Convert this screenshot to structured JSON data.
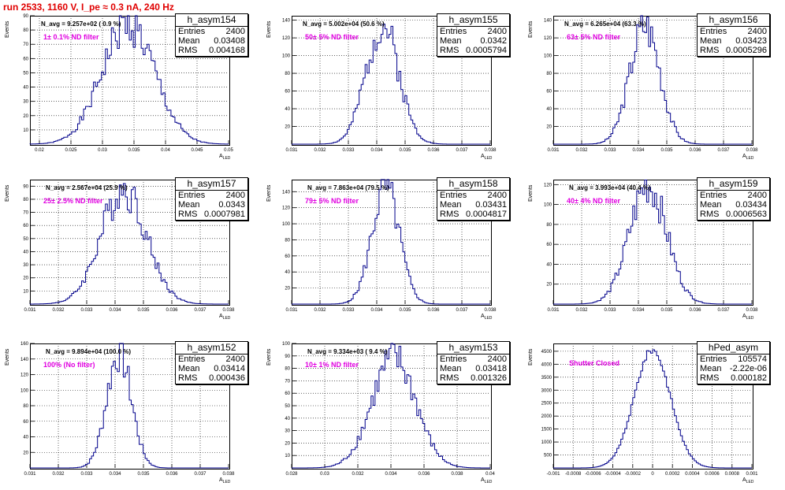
{
  "title": "run 2533,  1160 V, I_pe ≈ 0.3 nA, 240 Hz",
  "y_axis_title": "Events",
  "x_axis_title": "A",
  "x_axis_subscript": "LED",
  "stats_labels": {
    "entries": "Entries",
    "mean": "Mean",
    "rms": "RMS"
  },
  "colors": {
    "title": "#e00000",
    "label": "#e000e0",
    "histogram": "#00008b"
  },
  "chart_data": [
    {
      "type": "histogram",
      "name": "h_asym154",
      "n_avg_text": "N_avg = 9.257e+02 ( 0.9 %)",
      "filter_label": "1± 0.1% ND filter",
      "entries": "2400",
      "mean": "0.03408",
      "rms": "0.004168",
      "mean_value": 0.03408,
      "rms_value": 0.004168,
      "peak": 84,
      "xlim": [
        0.0185,
        0.05
      ],
      "xticks": [
        "0.02",
        "0.025",
        "0.03",
        "0.035",
        "0.04",
        "0.045",
        "0.05"
      ],
      "xtick_values": [
        0.02,
        0.025,
        0.03,
        0.035,
        0.04,
        0.045,
        0.05
      ],
      "ylim": [
        0,
        90
      ],
      "yticks": [
        "10",
        "20",
        "30",
        "40",
        "50",
        "60",
        "70",
        "80",
        "90"
      ],
      "ytick_values": [
        10,
        20,
        30,
        40,
        50,
        60,
        70,
        80,
        90
      ]
    },
    {
      "type": "histogram",
      "name": "h_asym155",
      "n_avg_text": "N_avg = 5.002e+04 (50.6 %)",
      "filter_label": "50± 5% ND filter",
      "entries": "2400",
      "mean": "0.0342",
      "rms": "0.0005794",
      "mean_value": 0.0342,
      "rms_value": 0.0005794,
      "peak": 135,
      "xlim": [
        0.031,
        0.038
      ],
      "xticks": [
        "0.031",
        "0.032",
        "0.033",
        "0.034",
        "0.035",
        "0.036",
        "0.037",
        "0.038"
      ],
      "xtick_values": [
        0.031,
        0.032,
        0.033,
        0.034,
        0.035,
        0.036,
        0.037,
        0.038
      ],
      "ylim": [
        0,
        145
      ],
      "yticks": [
        "20",
        "40",
        "60",
        "80",
        "100",
        "120",
        "140"
      ],
      "ytick_values": [
        20,
        40,
        60,
        80,
        100,
        120,
        140
      ]
    },
    {
      "type": "histogram",
      "name": "h_asym156",
      "n_avg_text": "N_avg = 6.265e+04 (63.3 %)",
      "filter_label": "63± 5% ND filter",
      "entries": "2400",
      "mean": "0.03423",
      "rms": "0.0005296",
      "mean_value": 0.03423,
      "rms_value": 0.0005296,
      "peak": 135,
      "xlim": [
        0.031,
        0.038
      ],
      "xticks": [
        "0.031",
        "0.032",
        "0.033",
        "0.034",
        "0.035",
        "0.036",
        "0.037",
        "0.038"
      ],
      "xtick_values": [
        0.031,
        0.032,
        0.033,
        0.034,
        0.035,
        0.036,
        0.037,
        0.038
      ],
      "ylim": [
        0,
        145
      ],
      "yticks": [
        "20",
        "40",
        "60",
        "80",
        "100",
        "120",
        "140"
      ],
      "ytick_values": [
        20,
        40,
        60,
        80,
        100,
        120,
        140
      ]
    },
    {
      "type": "histogram",
      "name": "h_asym157",
      "n_avg_text": "N_avg = 2.567e+04 (25.9 %)",
      "filter_label": "25± 2.5% ND filter",
      "entries": "2400",
      "mean": "0.0343",
      "rms": "0.0007981",
      "mean_value": 0.0343,
      "rms_value": 0.0007981,
      "peak": 88,
      "xlim": [
        0.031,
        0.038
      ],
      "xticks": [
        "0.031",
        "0.032",
        "0.033",
        "0.034",
        "0.035",
        "0.036",
        "0.037",
        "0.038"
      ],
      "xtick_values": [
        0.031,
        0.032,
        0.033,
        0.034,
        0.035,
        0.036,
        0.037,
        0.038
      ],
      "ylim": [
        0,
        95
      ],
      "yticks": [
        "10",
        "20",
        "30",
        "40",
        "50",
        "60",
        "70",
        "80",
        "90"
      ],
      "ytick_values": [
        10,
        20,
        30,
        40,
        50,
        60,
        70,
        80,
        90
      ]
    },
    {
      "type": "histogram",
      "name": "h_asym158",
      "n_avg_text": "N_avg = 7.863e+04 (79.5 %)",
      "filter_label": "79± 5% ND filter",
      "entries": "2400",
      "mean": "0.03431",
      "rms": "0.0004817",
      "mean_value": 0.03431,
      "rms_value": 0.0004817,
      "peak": 145,
      "xlim": [
        0.031,
        0.038
      ],
      "xticks": [
        "0.031",
        "0.032",
        "0.033",
        "0.034",
        "0.035",
        "0.036",
        "0.037",
        "0.038"
      ],
      "xtick_values": [
        0.031,
        0.032,
        0.033,
        0.034,
        0.035,
        0.036,
        0.037,
        0.038
      ],
      "ylim": [
        0,
        155
      ],
      "yticks": [
        "20",
        "40",
        "60",
        "80",
        "100",
        "120",
        "140"
      ],
      "ytick_values": [
        20,
        40,
        60,
        80,
        100,
        120,
        140
      ]
    },
    {
      "type": "histogram",
      "name": "h_asym159",
      "n_avg_text": "N_avg = 3.993e+04 (40.4 %)",
      "filter_label": "40± 4% ND filter",
      "entries": "2400",
      "mean": "0.03434",
      "rms": "0.0006563",
      "mean_value": 0.03434,
      "rms_value": 0.0006563,
      "peak": 120,
      "xlim": [
        0.031,
        0.038
      ],
      "xticks": [
        "0.031",
        "0.032",
        "0.033",
        "0.034",
        "0.035",
        "0.036",
        "0.037",
        "0.038"
      ],
      "xtick_values": [
        0.031,
        0.032,
        0.033,
        0.034,
        0.035,
        0.036,
        0.037,
        0.038
      ],
      "ylim": [
        0,
        125
      ],
      "yticks": [
        "20",
        "40",
        "60",
        "80",
        "100",
        "120"
      ],
      "ytick_values": [
        20,
        40,
        60,
        80,
        100,
        120
      ]
    },
    {
      "type": "histogram",
      "name": "h_asym152",
      "n_avg_text": "N_avg = 9.894e+04 (100.0 %)",
      "filter_label": "100% (No filter)",
      "entries": "2400",
      "mean": "0.03414",
      "rms": "0.000436",
      "mean_value": 0.03414,
      "rms_value": 0.000436,
      "peak": 148,
      "xlim": [
        0.031,
        0.038
      ],
      "xticks": [
        "0.031",
        "0.032",
        "0.033",
        "0.034",
        "0.035",
        "0.036",
        "0.037",
        "0.038"
      ],
      "xtick_values": [
        0.031,
        0.032,
        0.033,
        0.034,
        0.035,
        0.036,
        0.037,
        0.038
      ],
      "ylim": [
        0,
        160
      ],
      "yticks": [
        "20",
        "40",
        "60",
        "80",
        "100",
        "120",
        "140",
        "160"
      ],
      "ytick_values": [
        20,
        40,
        60,
        80,
        100,
        120,
        140,
        160
      ]
    },
    {
      "type": "histogram",
      "name": "h_asym153",
      "n_avg_text": "N_avg = 9.334e+03 ( 9.4 %)",
      "filter_label": "10± 1% ND filter",
      "entries": "2400",
      "mean": "0.03418",
      "rms": "0.001326",
      "mean_value": 0.03418,
      "rms_value": 0.001326,
      "peak": 88,
      "xlim": [
        0.028,
        0.04
      ],
      "xticks": [
        "0.028",
        "0.03",
        "0.032",
        "0.034",
        "0.036",
        "0.038",
        "0.04"
      ],
      "xtick_values": [
        0.028,
        0.03,
        0.032,
        0.034,
        0.036,
        0.038,
        0.04
      ],
      "ylim": [
        0,
        100
      ],
      "yticks": [
        "10",
        "20",
        "30",
        "40",
        "50",
        "60",
        "70",
        "80",
        "90",
        "100"
      ],
      "ytick_values": [
        10,
        20,
        30,
        40,
        50,
        60,
        70,
        80,
        90,
        100
      ]
    },
    {
      "type": "histogram",
      "name": "hPed_asym",
      "n_avg_text": "",
      "filter_label": "Shutter Closed",
      "entries": "105574",
      "mean": "-2.22e-06",
      "rms": "0.000182",
      "mean_value": -2.22e-06,
      "rms_value": 0.000182,
      "peak": 4550,
      "xlim": [
        -0.001,
        0.001
      ],
      "xticks": [
        "-0.001",
        "-0.0008",
        "-0.0006",
        "-0.0004",
        "-0.0002",
        "0",
        "0.0002",
        "0.0004",
        "0.0006",
        "0.0008",
        "0.001"
      ],
      "xtick_values": [
        -0.001,
        -0.0008,
        -0.0006,
        -0.0004,
        -0.0002,
        0,
        0.0002,
        0.0004,
        0.0006,
        0.0008,
        0.001
      ],
      "ylim": [
        0,
        4800
      ],
      "yticks": [
        "500",
        "1000",
        "1500",
        "2000",
        "2500",
        "3000",
        "3500",
        "4000",
        "4500"
      ],
      "ytick_values": [
        500,
        1000,
        1500,
        2000,
        2500,
        3000,
        3500,
        4000,
        4500
      ]
    }
  ]
}
